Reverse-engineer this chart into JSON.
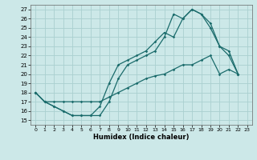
{
  "xlabel": "Humidex (Indice chaleur)",
  "bg_color": "#cce8e8",
  "grid_color": "#aad0d0",
  "line_color": "#1a6b6b",
  "xlim": [
    -0.5,
    23.5
  ],
  "ylim": [
    14.5,
    27.5
  ],
  "xticks": [
    0,
    1,
    2,
    3,
    4,
    5,
    6,
    7,
    8,
    9,
    10,
    11,
    12,
    13,
    14,
    15,
    16,
    17,
    18,
    19,
    20,
    21,
    22,
    23
  ],
  "yticks": [
    15,
    16,
    17,
    18,
    19,
    20,
    21,
    22,
    23,
    24,
    25,
    26,
    27
  ],
  "line1_x": [
    0,
    1,
    2,
    3,
    4,
    5,
    6,
    7,
    8,
    9,
    10,
    11,
    12,
    13,
    14,
    15,
    16,
    17,
    18,
    19,
    20,
    21,
    22
  ],
  "line1_y": [
    18,
    17,
    16.5,
    16,
    15.5,
    15.5,
    15.5,
    15.5,
    17,
    19.5,
    21,
    21.5,
    22,
    22.5,
    24,
    26.5,
    26,
    27,
    26.5,
    25,
    23,
    22.5,
    20
  ],
  "line2_x": [
    0,
    1,
    2,
    3,
    4,
    5,
    6,
    7,
    8,
    9,
    10,
    11,
    12,
    13,
    14,
    15,
    16,
    17,
    18,
    19,
    20,
    21,
    22
  ],
  "line2_y": [
    18,
    17,
    16.5,
    16,
    15.5,
    15.5,
    15.5,
    16.5,
    19,
    21,
    21.5,
    22,
    22.5,
    23.5,
    24.5,
    24,
    26,
    27,
    26.5,
    25.5,
    23,
    22,
    20
  ],
  "line3_x": [
    0,
    1,
    2,
    3,
    4,
    5,
    6,
    7,
    8,
    9,
    10,
    11,
    12,
    13,
    14,
    15,
    16,
    17,
    18,
    19,
    20,
    21,
    22
  ],
  "line3_y": [
    18,
    17,
    17,
    17,
    17,
    17,
    17,
    17,
    17.5,
    18,
    18.5,
    19,
    19.5,
    19.8,
    20,
    20.5,
    21,
    21,
    21.5,
    22,
    20,
    20.5,
    20
  ]
}
